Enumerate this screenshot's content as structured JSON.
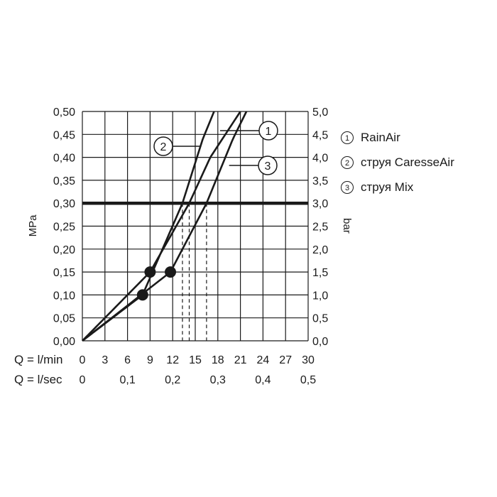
{
  "chart_data": {
    "type": "line",
    "xlabel_lmin": "Q = l/min",
    "xlabel_lsec": "Q = l/sec",
    "ylabel_left": "MPa",
    "ylabel_right": "bar",
    "xlim": [
      0,
      30
    ],
    "ylim": [
      0,
      0.5
    ],
    "x_ticks_lmin": [
      "0",
      "3",
      "6",
      "9",
      "12",
      "15",
      "18",
      "21",
      "24",
      "27",
      "30"
    ],
    "x_ticks_lsec": [
      {
        "q": 0,
        "label": "0"
      },
      {
        "q": 6,
        "label": "0,1"
      },
      {
        "q": 12,
        "label": "0,2"
      },
      {
        "q": 18,
        "label": "0,3"
      },
      {
        "q": 24,
        "label": "0,4"
      },
      {
        "q": 30,
        "label": "0,5"
      }
    ],
    "y_ticks_left": [
      "0,00",
      "0,05",
      "0,10",
      "0,15",
      "0,20",
      "0,25",
      "0,30",
      "0,35",
      "0,40",
      "0,45",
      "0,50"
    ],
    "y_ticks_right": [
      "0,0",
      "0,5",
      "1,0",
      "1,5",
      "2,0",
      "2,5",
      "3,0",
      "3,5",
      "4,0",
      "4,5",
      "5,0"
    ],
    "grid": true,
    "reference_line": {
      "y": 0.3
    },
    "series": [
      {
        "name": "RainAir",
        "marker_label": "1",
        "x": [
          0,
          9.0,
          14.2,
          17.0,
          21.0
        ],
        "y": [
          0,
          0.15,
          0.3,
          0.4,
          0.5
        ]
      },
      {
        "name": "струя CaresseAir",
        "marker_label": "2",
        "x": [
          0,
          8.0,
          13.3,
          16.0,
          17.5
        ],
        "y": [
          0,
          0.1,
          0.3,
          0.44,
          0.5
        ]
      },
      {
        "name": "струя Mix",
        "marker_label": "3",
        "x": [
          0,
          11.7,
          16.5,
          20.0,
          21.8
        ],
        "y": [
          0,
          0.15,
          0.3,
          0.44,
          0.5
        ]
      }
    ],
    "points": [
      {
        "x": 8.0,
        "y": 0.1
      },
      {
        "x": 9.0,
        "y": 0.15
      },
      {
        "x": 11.7,
        "y": 0.15
      }
    ],
    "dashed_drops": [
      13.3,
      14.2,
      16.5
    ]
  },
  "legend": [
    {
      "num": "1",
      "label": "RainAir"
    },
    {
      "num": "2",
      "label": "струя CaresseAir"
    },
    {
      "num": "3",
      "label": "струя Mix"
    }
  ]
}
